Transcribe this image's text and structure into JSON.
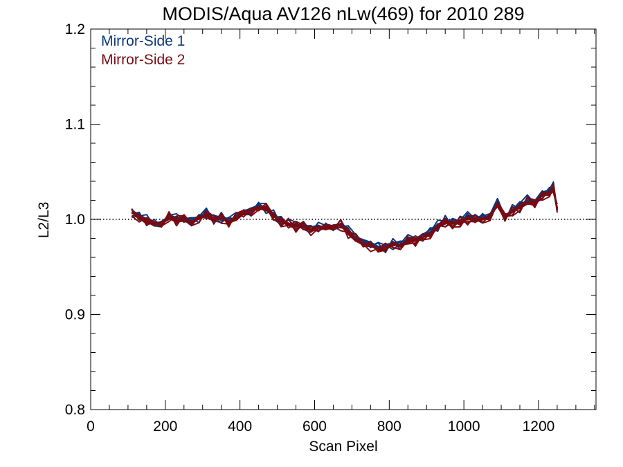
{
  "chart_data": {
    "type": "line",
    "title": "MODIS/Aqua AV126 nLw(469) for 2010 289",
    "xlabel": "Scan Pixel",
    "ylabel": "L2/L3",
    "xlim": [
      0,
      1354
    ],
    "ylim": [
      0.8,
      1.2
    ],
    "x_ticks": [
      0,
      200,
      400,
      600,
      800,
      1000,
      1200
    ],
    "x_tick_labels": [
      "0",
      "200",
      "400",
      "600",
      "800",
      "1000",
      "1200"
    ],
    "y_ticks": [
      0.8,
      0.9,
      1.0,
      1.1,
      1.2
    ],
    "y_tick_labels": [
      "0.8",
      "0.9",
      "1.0",
      "1.1",
      "1.2"
    ],
    "reference_line": {
      "y": 1.0,
      "style": "dotted"
    },
    "grid": false,
    "legend_position": "top-left",
    "x": [
      110,
      130,
      150,
      170,
      190,
      210,
      230,
      250,
      270,
      290,
      310,
      330,
      350,
      370,
      390,
      410,
      430,
      450,
      470,
      490,
      510,
      530,
      550,
      570,
      590,
      610,
      630,
      650,
      670,
      690,
      710,
      730,
      750,
      770,
      790,
      810,
      830,
      850,
      870,
      890,
      910,
      930,
      950,
      970,
      990,
      1010,
      1030,
      1050,
      1070,
      1090,
      1110,
      1130,
      1150,
      1170,
      1190,
      1210,
      1230,
      1240,
      1250
    ],
    "series": [
      {
        "name": "Mirror-Side 1",
        "color": "#0b3778",
        "values": [
          1.008,
          1.003,
          0.999,
          0.994,
          0.998,
          1.003,
          1.0,
          1.001,
          0.999,
          1.001,
          1.006,
          1.001,
          1.002,
          0.999,
          1.002,
          1.008,
          1.01,
          1.013,
          1.012,
          1.004,
          0.999,
          0.996,
          0.993,
          0.994,
          0.99,
          0.992,
          0.99,
          0.994,
          0.995,
          0.988,
          0.981,
          0.977,
          0.974,
          0.97,
          0.971,
          0.974,
          0.976,
          0.978,
          0.979,
          0.983,
          0.987,
          0.993,
          0.998,
          0.997,
          0.999,
          1.002,
          1.001,
          1.002,
          1.004,
          1.016,
          1.004,
          1.01,
          1.015,
          1.02,
          1.019,
          1.027,
          1.029,
          1.034,
          1.01
        ]
      },
      {
        "name": "Mirror-Side 2",
        "color": "#7a0a10",
        "values": [
          1.007,
          1.002,
          0.998,
          0.993,
          0.997,
          1.002,
          0.999,
          1.0,
          0.998,
          1.0,
          1.004,
          1.0,
          1.001,
          0.998,
          1.001,
          1.007,
          1.009,
          1.012,
          1.011,
          1.003,
          0.998,
          0.995,
          0.992,
          0.993,
          0.989,
          0.991,
          0.989,
          0.993,
          0.994,
          0.986,
          0.979,
          0.975,
          0.972,
          0.968,
          0.969,
          0.972,
          0.974,
          0.976,
          0.977,
          0.981,
          0.985,
          0.991,
          0.996,
          0.995,
          0.997,
          1.0,
          0.999,
          1.0,
          1.003,
          1.014,
          1.002,
          1.008,
          1.013,
          1.018,
          1.017,
          1.025,
          1.027,
          1.032,
          1.008
        ]
      }
    ]
  }
}
